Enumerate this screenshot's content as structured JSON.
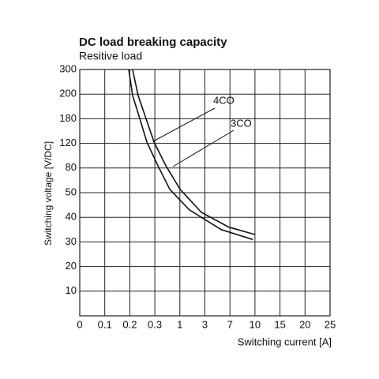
{
  "chart_data": {
    "type": "line",
    "title": "DC load breaking capacity",
    "subtitle": "Resitive load",
    "x_label": "Switching current [A]",
    "y_label": "Switching voltage [V/DC]",
    "xlim": [
      0,
      25
    ],
    "xticks": [
      0,
      0.1,
      0.2,
      0.3,
      1,
      3,
      7,
      10,
      15,
      20,
      25
    ],
    "ylim": [
      0,
      300
    ],
    "yticks": [
      10,
      20,
      30,
      40,
      50,
      80,
      120,
      180,
      200,
      300
    ],
    "grid": true,
    "series": [
      {
        "name": "4CO",
        "color": "#111111",
        "x": [
          0.211,
          0.233,
          0.265,
          0.297,
          0.608,
          1.02,
          2.72,
          6.84,
          10
        ],
        "values": [
          300,
          199,
          180,
          123,
          84,
          54,
          42,
          36,
          33
        ]
      },
      {
        "name": "3CO",
        "color": "#111111",
        "x": [
          0.196,
          0.211,
          0.24,
          0.268,
          0.384,
          0.72,
          1.76,
          5.6,
          9.73
        ],
        "values": [
          300,
          199,
          180,
          123,
          84,
          54,
          43,
          35,
          31
        ]
      }
    ]
  }
}
